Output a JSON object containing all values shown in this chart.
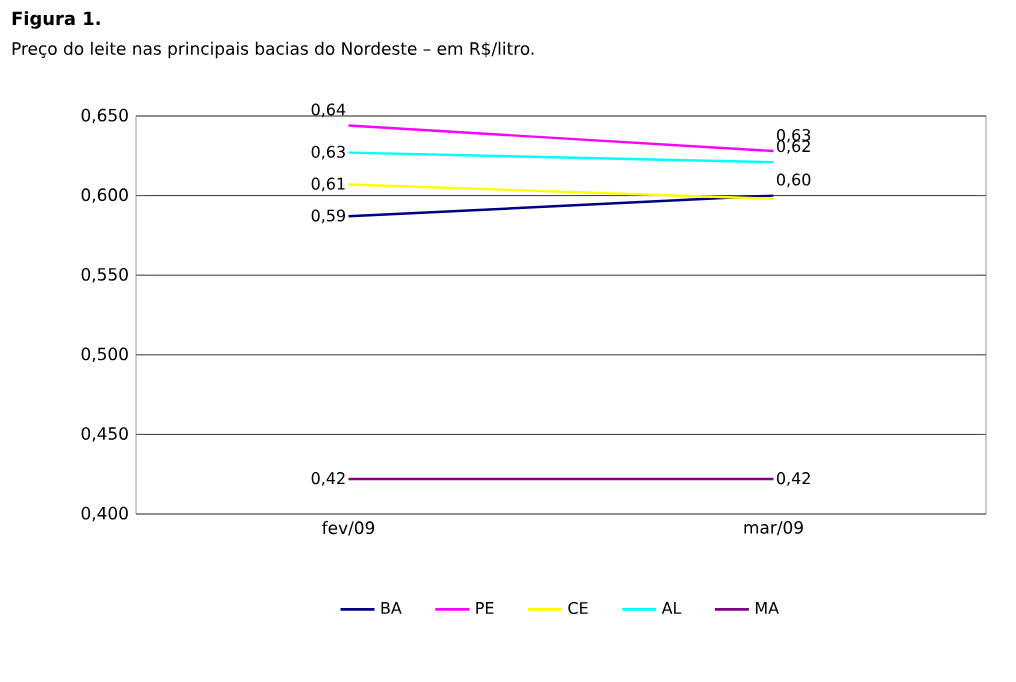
{
  "chart_data": {
    "type": "line",
    "title": "Figura 1.",
    "subtitle": "Preço do leite nas principais bacias do Nordeste – em R$/litro.",
    "categories": [
      "fev/09",
      "mar/09"
    ],
    "series": [
      {
        "name": "BA",
        "color": "#000080",
        "values": [
          0.587,
          0.6
        ],
        "value_labels": [
          "0,59",
          "0,60"
        ]
      },
      {
        "name": "PE",
        "color": "#ff00ff",
        "values": [
          0.644,
          0.628
        ],
        "value_labels": [
          "0,64",
          "0,63"
        ]
      },
      {
        "name": "CE",
        "color": "#ffff00",
        "values": [
          0.607,
          0.598
        ],
        "value_labels": [
          "0,61",
          null
        ]
      },
      {
        "name": "AL",
        "color": "#00ffff",
        "values": [
          0.627,
          0.621
        ],
        "value_labels": [
          "0,63",
          "0,62"
        ]
      },
      {
        "name": "MA",
        "color": "#800080",
        "values": [
          0.422,
          0.422
        ],
        "value_labels": [
          "0,42",
          "0,42"
        ]
      }
    ],
    "ylim": [
      0.4,
      0.65
    ],
    "yticks": [
      {
        "value": 0.4,
        "label": "0,400"
      },
      {
        "value": 0.45,
        "label": "0,450"
      },
      {
        "value": 0.5,
        "label": "0,500"
      },
      {
        "value": 0.55,
        "label": "0,550"
      },
      {
        "value": 0.6,
        "label": "0,600"
      },
      {
        "value": 0.65,
        "label": "0,650"
      }
    ],
    "grid": "y",
    "legend": "bottom",
    "marker": "none",
    "line_style": "solid"
  }
}
